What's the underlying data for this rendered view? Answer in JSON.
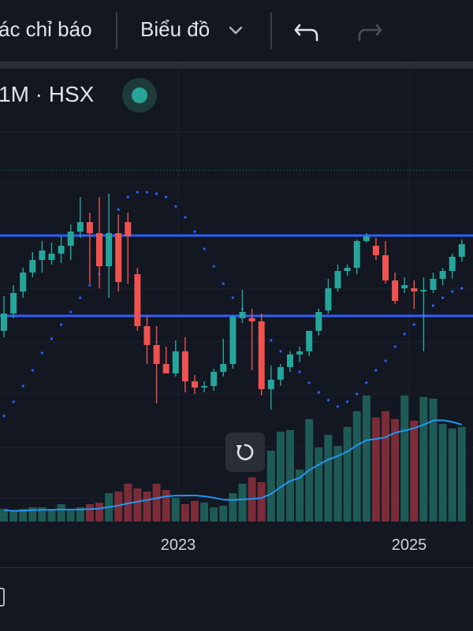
{
  "toolbar": {
    "indicators_label": "ác chỉ báo",
    "chart_type_label": "Biểu đồ",
    "undo_icon": "undo-icon",
    "redo_icon": "redo-icon",
    "dropdown_icon": "chevron-down-icon"
  },
  "legend": {
    "symbol_text": "1M · HSX",
    "status_color": "#26a69a"
  },
  "x_axis": {
    "labels": [
      "2023",
      "2025"
    ]
  },
  "reset_button_icon": "reset-icon",
  "colors": {
    "up": "#26a69a",
    "down": "#ef5350",
    "hline": "#2962ff",
    "volume_ma": "#2196f3",
    "sar": "#2962ff"
  },
  "chart_data": {
    "type": "candlestick",
    "interval": "1M",
    "exchange": "HSX",
    "horizontal_lines": 2,
    "series": [
      {
        "name": "candles",
        "count": 49
      },
      {
        "name": "volume",
        "count": 49
      },
      {
        "name": "parabolic_sar",
        "count": 49
      }
    ]
  }
}
